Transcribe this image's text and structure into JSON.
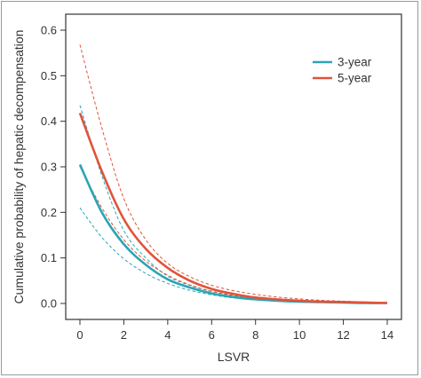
{
  "chart_data": {
    "type": "line",
    "xlabel": "LSVR",
    "ylabel": "Cumulative probability of hepatic decompensation",
    "xlim": [
      0,
      14
    ],
    "ylim": [
      0,
      0.6
    ],
    "xticks": [
      0,
      2,
      4,
      6,
      8,
      10,
      12,
      14
    ],
    "yticks": [
      0.0,
      0.1,
      0.2,
      0.3,
      0.4,
      0.5,
      0.6
    ],
    "xtick_labels": [
      "0",
      "2",
      "4",
      "6",
      "8",
      "10",
      "12",
      "14"
    ],
    "ytick_labels": [
      "0.0",
      "0.1",
      "0.2",
      "0.3",
      "0.4",
      "0.5",
      "0.6"
    ],
    "grid": false,
    "legend_position": "top-right",
    "x": [
      0,
      1,
      2,
      3,
      4,
      5,
      6,
      7,
      8,
      9,
      10,
      11,
      12,
      13,
      14
    ],
    "series": [
      {
        "name": "3-year",
        "color": "#2aa5b5",
        "values": [
          0.305,
          0.2,
          0.13,
          0.085,
          0.053,
          0.035,
          0.022,
          0.014,
          0.009,
          0.006,
          0.004,
          0.003,
          0.002,
          0.001,
          0.001
        ],
        "ci_lower": [
          0.21,
          0.145,
          0.098,
          0.066,
          0.044,
          0.029,
          0.019,
          0.012,
          0.008,
          0.005,
          0.003,
          0.002,
          0.001,
          0.001,
          0.0
        ],
        "ci_upper": [
          0.435,
          0.28,
          0.16,
          0.1,
          0.06,
          0.04,
          0.026,
          0.017,
          0.011,
          0.007,
          0.005,
          0.003,
          0.002,
          0.002,
          0.001
        ]
      },
      {
        "name": "5-year",
        "color": "#e0533a",
        "values": [
          0.418,
          0.29,
          0.185,
          0.12,
          0.078,
          0.05,
          0.032,
          0.021,
          0.013,
          0.009,
          0.006,
          0.004,
          0.003,
          0.002,
          0.001
        ],
        "ci_lower": [
          0.3,
          0.21,
          0.14,
          0.093,
          0.062,
          0.041,
          0.027,
          0.018,
          0.011,
          0.007,
          0.005,
          0.003,
          0.002,
          0.001,
          0.001
        ],
        "ci_upper": [
          0.568,
          0.385,
          0.23,
          0.14,
          0.088,
          0.059,
          0.04,
          0.028,
          0.02,
          0.014,
          0.01,
          0.007,
          0.005,
          0.003,
          0.002
        ]
      }
    ]
  }
}
